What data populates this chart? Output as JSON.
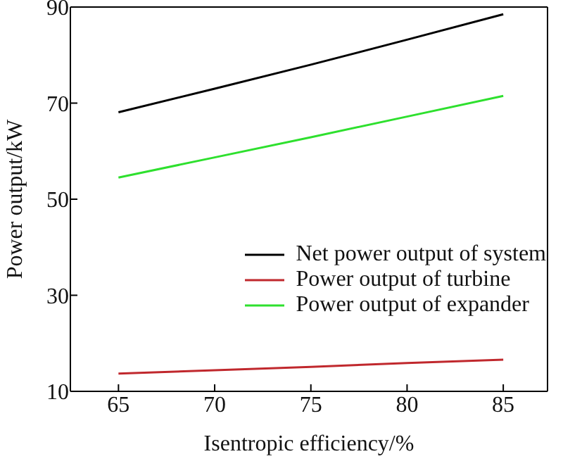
{
  "chart_data": {
    "type": "line",
    "xlabel": "Isentropic efficiency/%",
    "ylabel": "Power output/kW",
    "x": [
      65,
      70,
      75,
      80,
      85
    ],
    "series": [
      {
        "name": "Net power output of system",
        "color": "#000000",
        "values": [
          68.1,
          73,
          78,
          83.2,
          88.5
        ]
      },
      {
        "name": "Power output of turbine",
        "color": "#c0282d",
        "values": [
          13.7,
          14.4,
          15.1,
          15.9,
          16.6
        ]
      },
      {
        "name": "Power output of expander",
        "color": "#2ee02e",
        "values": [
          54.5,
          58.7,
          62.9,
          67.2,
          71.5
        ]
      }
    ],
    "xlim": [
      62.5,
      87.3
    ],
    "xticks": [
      65,
      70,
      75,
      80,
      85
    ],
    "ylim": [
      10,
      90
    ],
    "yticks": [
      10,
      30,
      50,
      70,
      90
    ],
    "legend": "bottom right",
    "marker": "none",
    "line_style": "solid"
  }
}
